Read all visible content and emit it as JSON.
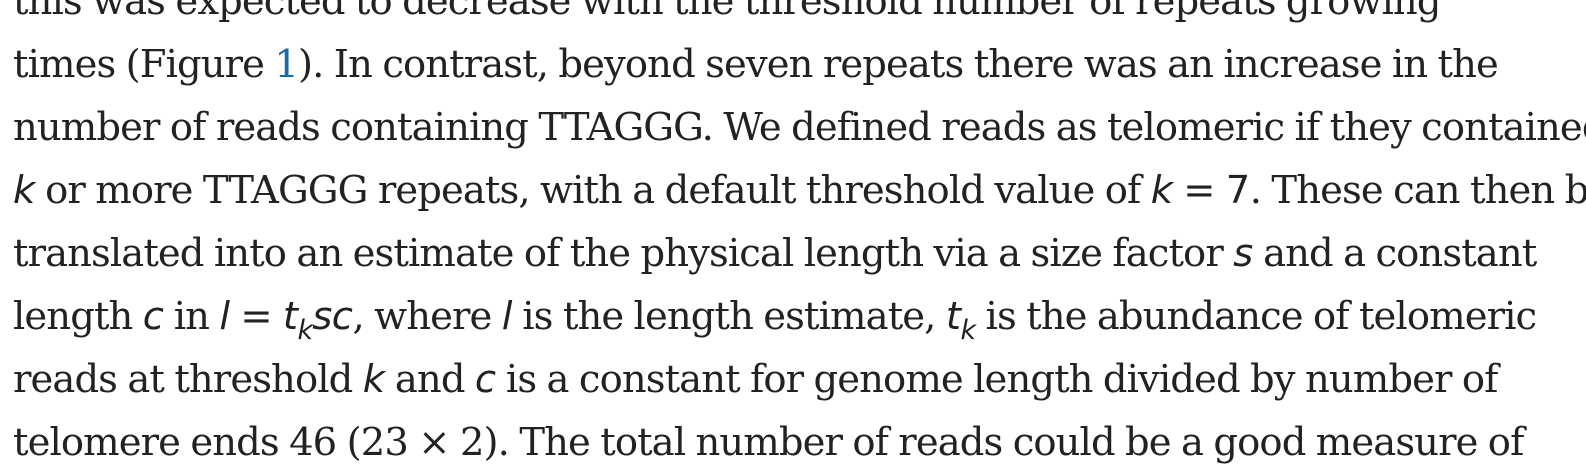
{
  "paragraph": {
    "line0": {
      "text": "this was expected to decrease with the threshold number of repeats growing"
    },
    "line1": {
      "a": "times (Figure ",
      "fig_ref": "1",
      "b": "). In contrast, beyond seven repeats there was an increase in the"
    },
    "line2": {
      "text": "number of reads containing TTAGGG. We defined reads as telomeric if they contained"
    },
    "line3": {
      "k": "k",
      "a": " or more TTAGGG repeats, with a default threshold value of ",
      "k2": "k",
      "eq": " = 7",
      "b": ". These can then be"
    },
    "line4": {
      "a": "translated into an estimate of the physical length via a size factor ",
      "s": "s",
      "b": " and a constant"
    },
    "line5": {
      "a": "length ",
      "c": "c",
      "b": " in ",
      "l": "l",
      "eq": " = ",
      "t": "t",
      "t_sub": "k",
      "sc": "sc",
      "c2": ", where ",
      "l2": "l",
      "d": " is the length estimate, ",
      "t2": "t",
      "t2_sub": "k",
      "e": " is the abundance of telomeric"
    },
    "line6": {
      "a": "reads at threshold ",
      "k": "k",
      "b": " and ",
      "c": "c",
      "d": " is a constant for genome length divided by number of"
    },
    "line7": {
      "text": "telomere ends 46 (23 × 2). The total number of reads could be a good measure of"
    }
  },
  "colors": {
    "text": "#222222",
    "link": "#1a6aa8",
    "background": "#ffffff"
  }
}
